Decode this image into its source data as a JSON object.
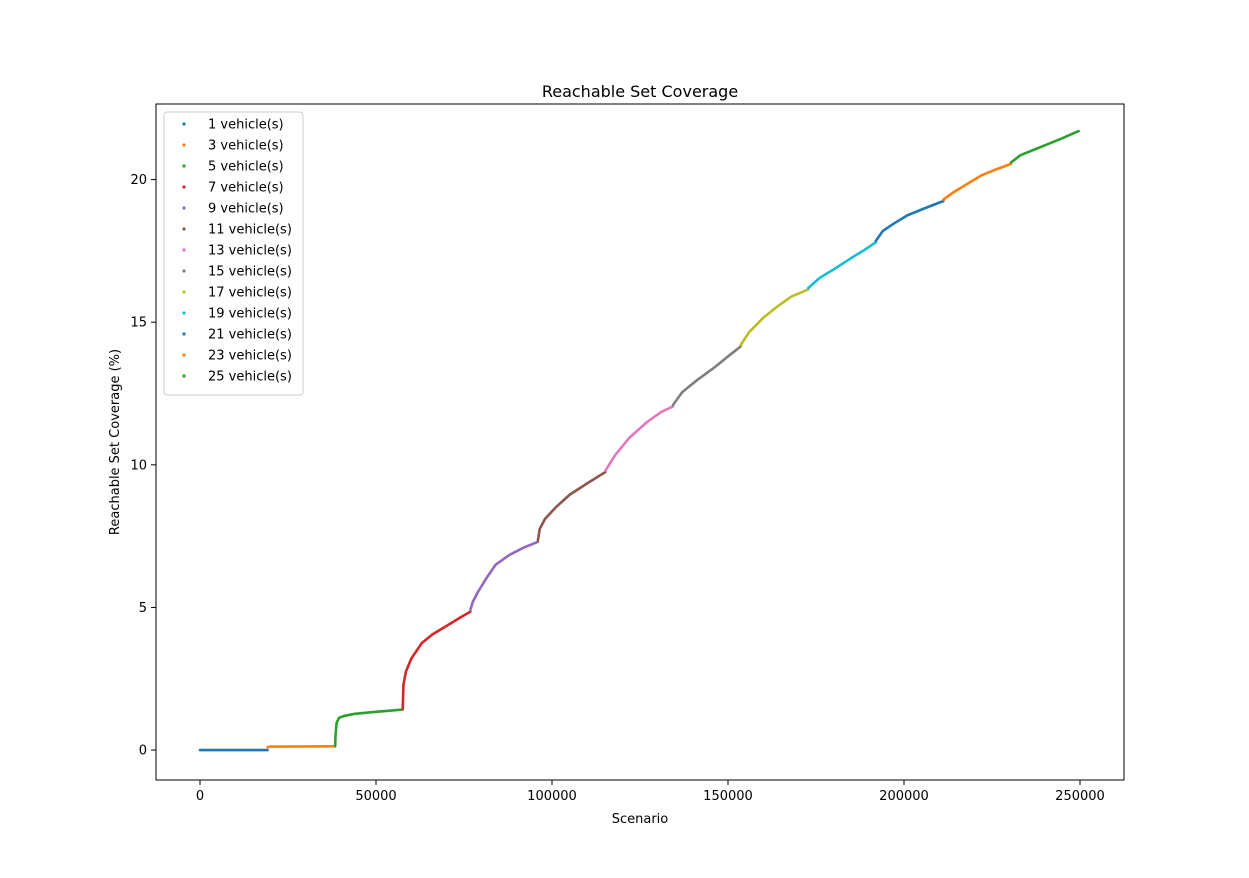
{
  "chart_data": {
    "type": "scatter",
    "title": "Reachable Set Coverage",
    "xlabel": "Scenario",
    "ylabel": "Reachable Set Coverage (%)",
    "xlim": [
      -12500,
      262500
    ],
    "ylim": [
      -1.05,
      22.65
    ],
    "xticks": [
      0,
      50000,
      100000,
      150000,
      200000,
      250000
    ],
    "yticks": [
      0,
      5,
      10,
      15,
      20
    ],
    "grid": false,
    "legend_position": "top-left",
    "series": [
      {
        "name": "1 vehicle(s)",
        "color": "#1f77b4",
        "x": [
          0,
          19200
        ],
        "y": [
          0.0,
          0.0
        ]
      },
      {
        "name": "3 vehicle(s)",
        "color": "#ff7f0e",
        "x": [
          19200,
          20000,
          38400
        ],
        "y": [
          0.1,
          0.12,
          0.13
        ]
      },
      {
        "name": "5 vehicle(s)",
        "color": "#2ca02c",
        "x": [
          38400,
          38500,
          38800,
          39500,
          41000,
          44000,
          50000,
          57600
        ],
        "y": [
          0.13,
          0.5,
          0.95,
          1.13,
          1.2,
          1.27,
          1.34,
          1.42
        ]
      },
      {
        "name": "7 vehicle(s)",
        "color": "#d62728",
        "x": [
          57600,
          57800,
          58500,
          60000,
          63000,
          66000,
          70000,
          74000,
          76800
        ],
        "y": [
          1.45,
          2.3,
          2.75,
          3.2,
          3.75,
          4.05,
          4.35,
          4.65,
          4.85
        ]
      },
      {
        "name": "9 vehicle(s)",
        "color": "#9467bd",
        "x": [
          76800,
          77500,
          79000,
          81500,
          84000,
          88000,
          92000,
          96000
        ],
        "y": [
          4.9,
          5.2,
          5.55,
          6.05,
          6.5,
          6.85,
          7.1,
          7.3
        ]
      },
      {
        "name": "11 vehicle(s)",
        "color": "#8c564b",
        "x": [
          96000,
          96500,
          98000,
          101000,
          105000,
          110000,
          115200
        ],
        "y": [
          7.35,
          7.75,
          8.1,
          8.5,
          8.95,
          9.35,
          9.75
        ]
      },
      {
        "name": "13 vehicle(s)",
        "color": "#e377c2",
        "x": [
          115200,
          118000,
          122000,
          127000,
          131000,
          134400
        ],
        "y": [
          9.8,
          10.35,
          10.95,
          11.5,
          11.85,
          12.05
        ]
      },
      {
        "name": "15 vehicle(s)",
        "color": "#7f7f7f",
        "x": [
          134400,
          137000,
          141000,
          146000,
          150000,
          153600
        ],
        "y": [
          12.1,
          12.55,
          12.95,
          13.4,
          13.8,
          14.15
        ]
      },
      {
        "name": "17 vehicle(s)",
        "color": "#bcbd22",
        "x": [
          153600,
          156000,
          160000,
          164000,
          168000,
          172800
        ],
        "y": [
          14.2,
          14.65,
          15.15,
          15.55,
          15.9,
          16.15
        ]
      },
      {
        "name": "19 vehicle(s)",
        "color": "#17becf",
        "x": [
          172800,
          176000,
          180000,
          185000,
          189000,
          192000
        ],
        "y": [
          16.2,
          16.55,
          16.85,
          17.25,
          17.55,
          17.8
        ]
      },
      {
        "name": "21 vehicle(s)",
        "color": "#1f77b4",
        "x": [
          192000,
          194000,
          197000,
          201000,
          206000,
          211200
        ],
        "y": [
          17.85,
          18.2,
          18.45,
          18.75,
          19.0,
          19.25
        ]
      },
      {
        "name": "23 vehicle(s)",
        "color": "#ff7f0e",
        "x": [
          211200,
          214000,
          218000,
          222000,
          226000,
          230400
        ],
        "y": [
          19.3,
          19.55,
          19.85,
          20.15,
          20.35,
          20.55
        ]
      },
      {
        "name": "25 vehicle(s)",
        "color": "#2ca02c",
        "x": [
          230400,
          233000,
          237000,
          241000,
          245000,
          249600
        ],
        "y": [
          20.6,
          20.85,
          21.05,
          21.25,
          21.45,
          21.7
        ]
      }
    ]
  }
}
